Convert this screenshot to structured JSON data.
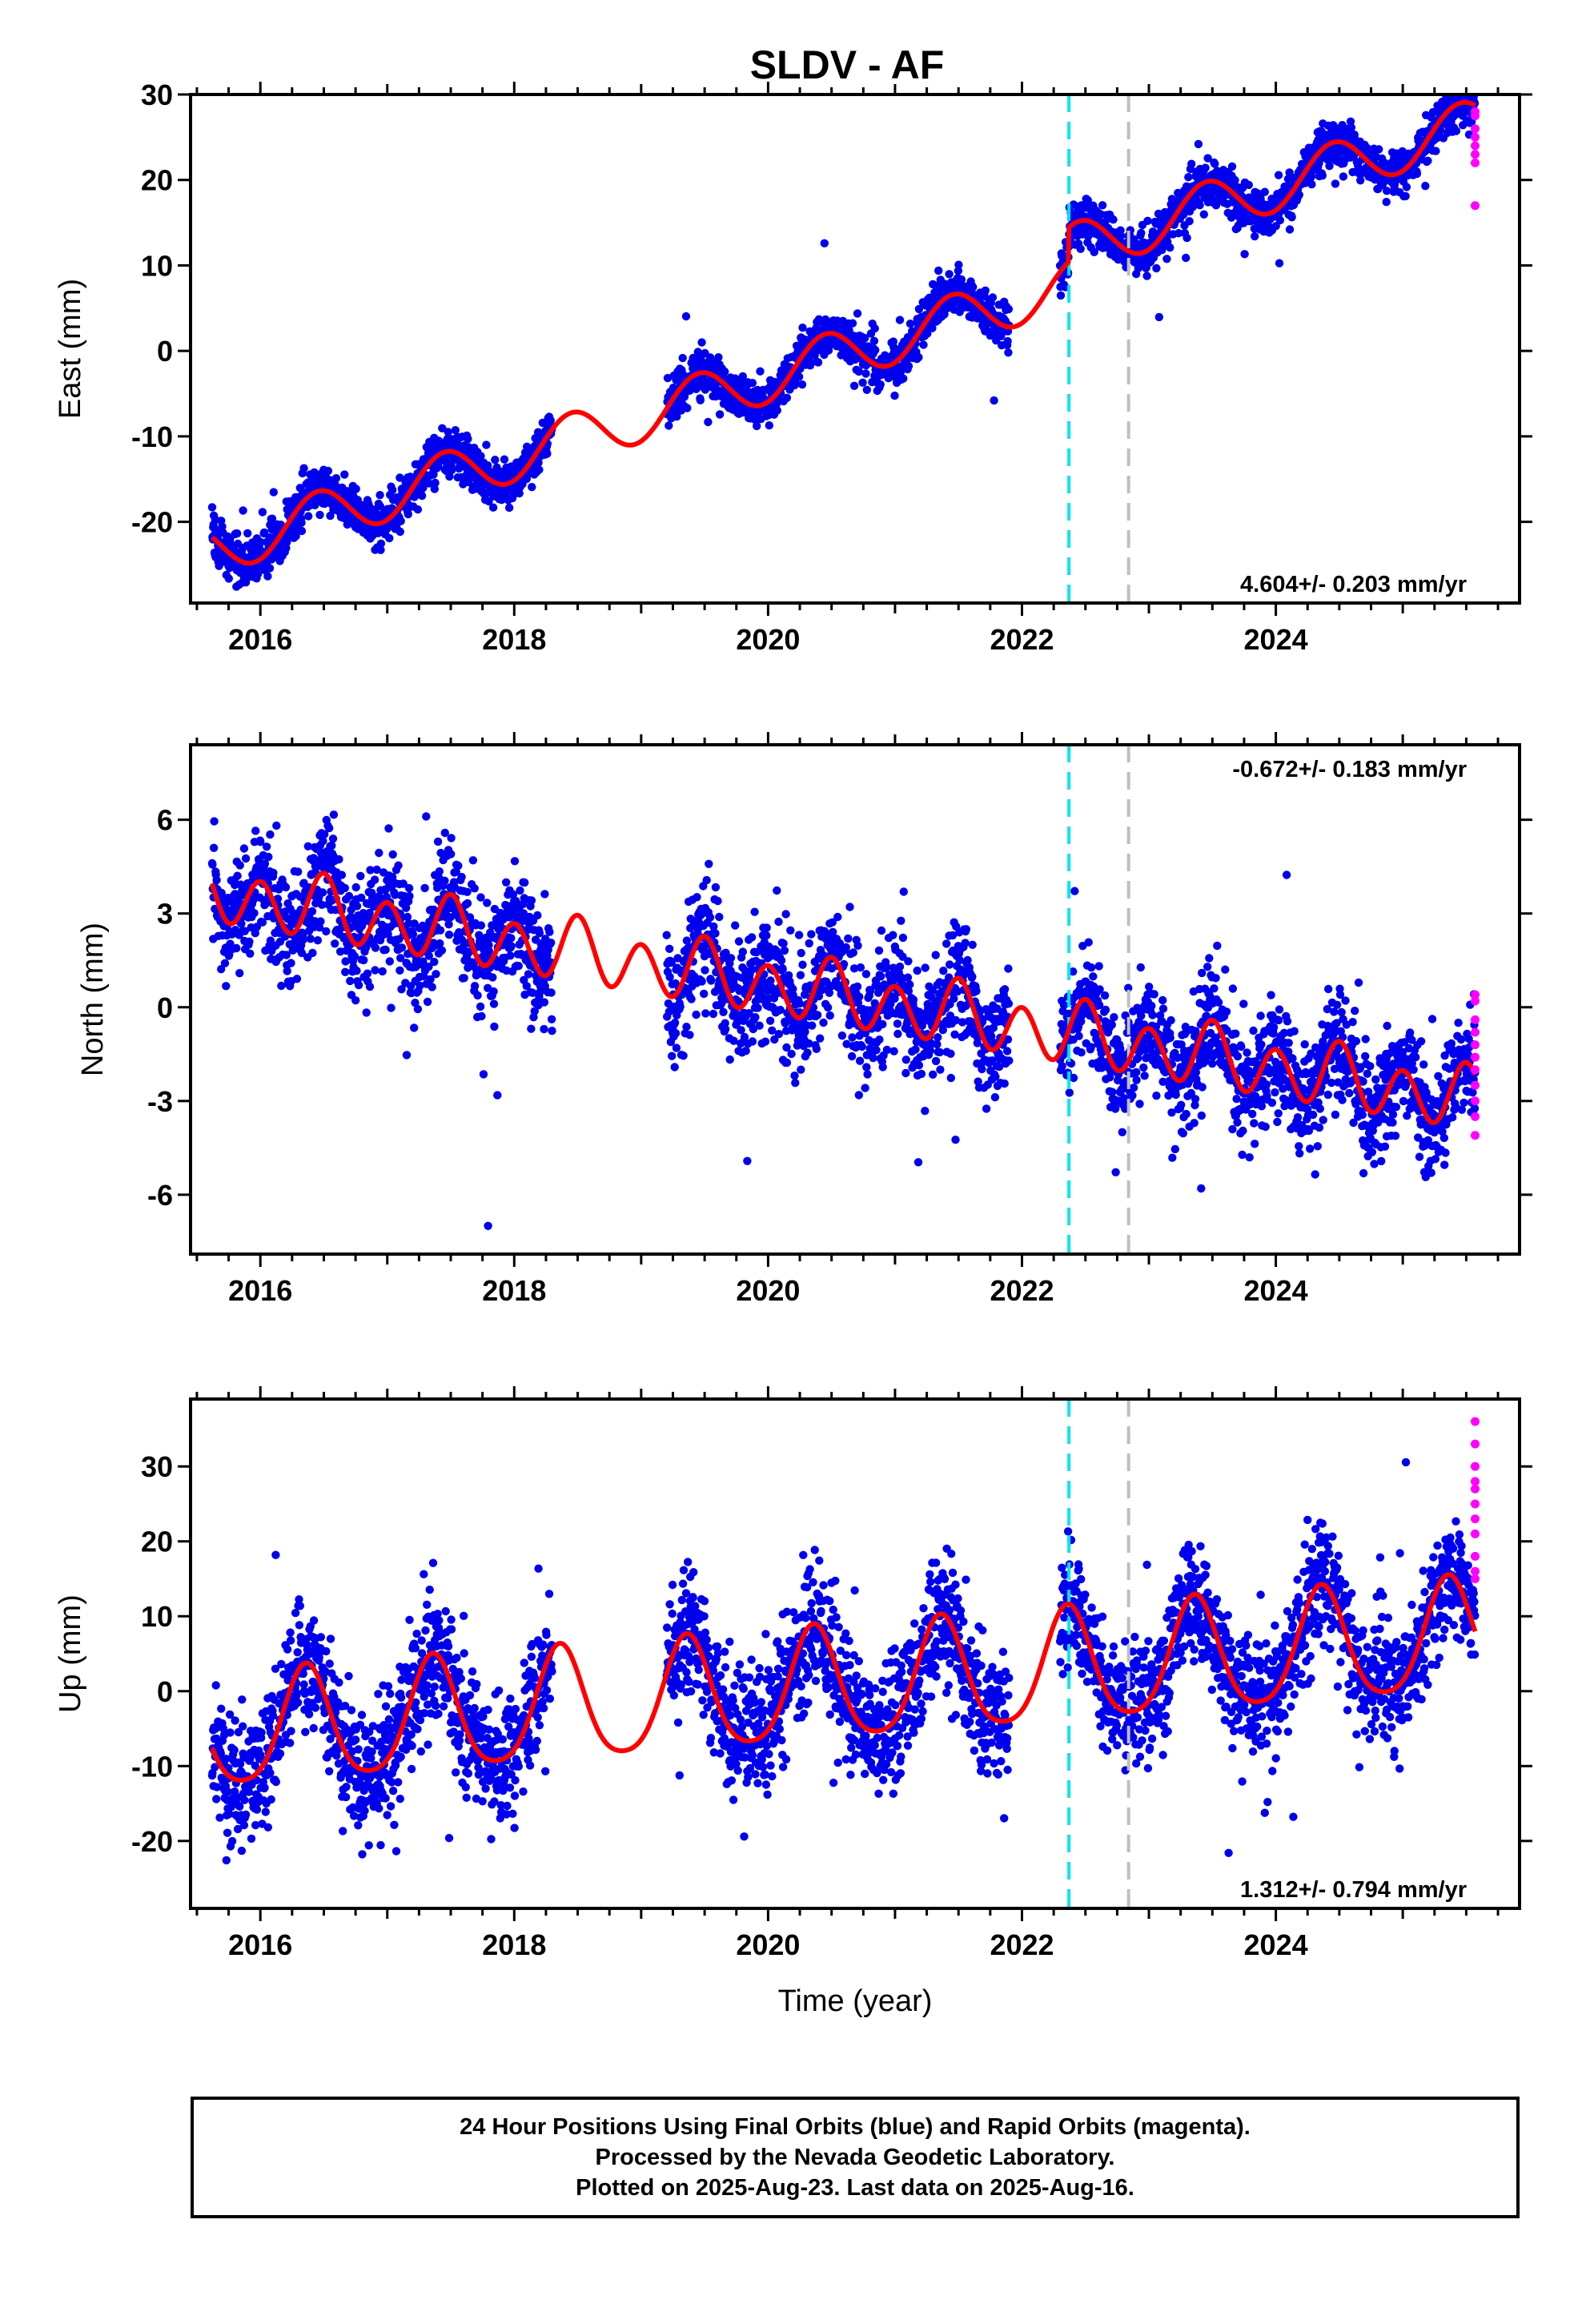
{
  "title": "SLDV - AF",
  "footer": {
    "line1": "24 Hour Positions Using Final Orbits (blue) and Rapid Orbits (magenta).",
    "line2": "Processed by the Nevada Geodetic Laboratory.",
    "line3": "Plotted on 2025-Aug-23. Last data on 2025-Aug-16."
  },
  "colors": {
    "final_orbits": "#0000ee",
    "rapid_orbits": "#ff00ff",
    "model_fit": "#ff0000",
    "event_line_1": "#00e5ee",
    "event_line_2": "#bfbfbf"
  },
  "chart_data": [
    {
      "type": "scatter",
      "ylabel": "East (mm)",
      "xlabel": "",
      "xlim": [
        2015.45,
        2025.92
      ],
      "ylim": [
        -29.5,
        30
      ],
      "yticks": [
        -20,
        -10,
        0,
        10,
        20,
        30
      ],
      "xticks": [
        2016,
        2018,
        2020,
        2022,
        2024
      ],
      "grid": false,
      "rate_label": "4.604+/- 0.203 mm/yr",
      "rate_position": "bottom-right",
      "event_lines": [
        2022.37,
        2022.84
      ],
      "data_span": [
        2015.62,
        2025.57
      ],
      "gap": [
        2018.3,
        2019.2
      ],
      "model": {
        "trend": 4.604,
        "ref_year": 2020.5,
        "offset": -0.8,
        "annual_amp": 3.0,
        "annual_phase": 0.45,
        "semi_amp": 0.0,
        "noise": 1.3,
        "step_year": 2022.37,
        "step": 4.0
      },
      "rapid": {
        "values": [
          28,
          27.5,
          26,
          25,
          24,
          23,
          22,
          17
        ],
        "year": 2025.57
      },
      "series": [
        {
          "name": "Final Orbits",
          "color": "#0000ee",
          "kind": "points"
        },
        {
          "name": "Rapid Orbits",
          "color": "#ff00ff",
          "kind": "points"
        },
        {
          "name": "Model Fit",
          "color": "#ff0000",
          "kind": "line"
        }
      ]
    },
    {
      "type": "scatter",
      "ylabel": "North (mm)",
      "xlabel": "",
      "xlim": [
        2015.45,
        2025.92
      ],
      "ylim": [
        -7.9,
        8.4
      ],
      "yticks": [
        -6,
        -3,
        0,
        3,
        6
      ],
      "xticks": [
        2016,
        2018,
        2020,
        2022,
        2024
      ],
      "grid": false,
      "rate_label": "-0.672+/- 0.183 mm/yr",
      "rate_position": "top-right",
      "event_lines": [
        2022.37,
        2022.84
      ],
      "data_span": [
        2015.62,
        2025.57
      ],
      "gap": [
        2018.3,
        2019.2
      ],
      "model": {
        "trend": -0.672,
        "ref_year": 2020.5,
        "offset": 0.4,
        "annual_amp": 0.3,
        "annual_phase": 0.5,
        "semi_amp": 0.9,
        "noise": 0.9,
        "step_year": 0,
        "step": 0
      },
      "rapid": {
        "values": [
          0.4,
          0.2,
          -0.4,
          -0.8,
          -1.2,
          -1.6,
          -2.0,
          -2.5,
          -3.0,
          -3.5,
          -4.1
        ],
        "year": 2025.57
      },
      "series": [
        {
          "name": "Final Orbits",
          "color": "#0000ee",
          "kind": "points"
        },
        {
          "name": "Rapid Orbits",
          "color": "#ff00ff",
          "kind": "points"
        },
        {
          "name": "Model Fit",
          "color": "#ff0000",
          "kind": "line"
        }
      ]
    },
    {
      "type": "scatter",
      "ylabel": "Up (mm)",
      "xlabel": "Time (year)",
      "xlim": [
        2015.45,
        2025.92
      ],
      "ylim": [
        -29,
        39
      ],
      "yticks": [
        -20,
        -10,
        0,
        10,
        20,
        30
      ],
      "xticks": [
        2016,
        2018,
        2020,
        2022,
        2024
      ],
      "grid": false,
      "rate_label": "1.312+/- 0.794 mm/yr",
      "rate_position": "bottom-right",
      "event_lines": [
        2022.37,
        2022.84
      ],
      "data_span": [
        2015.62,
        2025.57
      ],
      "gap": [
        2018.3,
        2019.2
      ],
      "model": {
        "trend": 1.312,
        "ref_year": 2020.5,
        "offset": 0.5,
        "annual_amp": 7.5,
        "annual_phase": 0.36,
        "semi_amp": 1.2,
        "noise": 4.2,
        "step_year": 0,
        "step": 0
      },
      "rapid": {
        "values": [
          36,
          33,
          30,
          28,
          27,
          25,
          23,
          21,
          18,
          16,
          15
        ],
        "year": 2025.57
      },
      "series": [
        {
          "name": "Final Orbits",
          "color": "#0000ee",
          "kind": "points"
        },
        {
          "name": "Rapid Orbits",
          "color": "#ff00ff",
          "kind": "points"
        },
        {
          "name": "Model Fit",
          "color": "#ff0000",
          "kind": "line"
        }
      ]
    }
  ]
}
